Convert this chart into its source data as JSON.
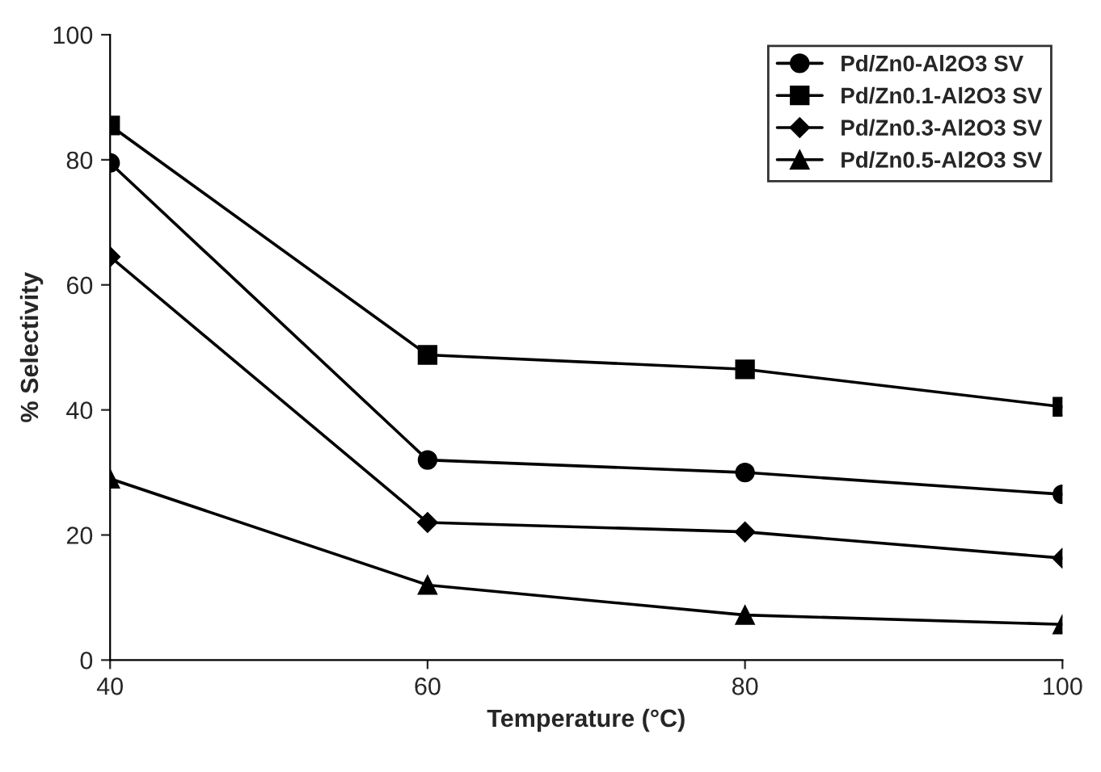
{
  "chart_data": {
    "type": "line",
    "xlabel": "Temperature (°C)",
    "ylabel": "% Selectivity",
    "x": [
      40,
      60,
      80,
      100
    ],
    "series": [
      {
        "name": "Pd/Zn0-Al2O3 SV",
        "color": "#000000",
        "marker": "circle",
        "values": [
          79.5,
          32,
          30,
          26.5
        ]
      },
      {
        "name": "Pd/Zn0.1-Al2O3 SV",
        "color": "#000000",
        "marker": "square",
        "values": [
          85.5,
          48.8,
          46.5,
          40.5
        ]
      },
      {
        "name": "Pd/Zn0.3-Al2O3 SV",
        "color": "#000000",
        "marker": "diamond",
        "values": [
          64.5,
          22,
          20.5,
          16.3
        ]
      },
      {
        "name": "Pd/Zn0.5-Al2O3 SV",
        "color": "#000000",
        "marker": "triangle",
        "values": [
          29,
          12,
          7.2,
          5.7
        ]
      }
    ],
    "xlim": [
      40,
      100
    ],
    "xticks": [
      40,
      60,
      80,
      100
    ],
    "ylim": [
      0,
      100
    ],
    "yticks": [
      0,
      20,
      40,
      60,
      80,
      100
    ],
    "grid": false,
    "legend": "top right",
    "line_style": "solid"
  }
}
